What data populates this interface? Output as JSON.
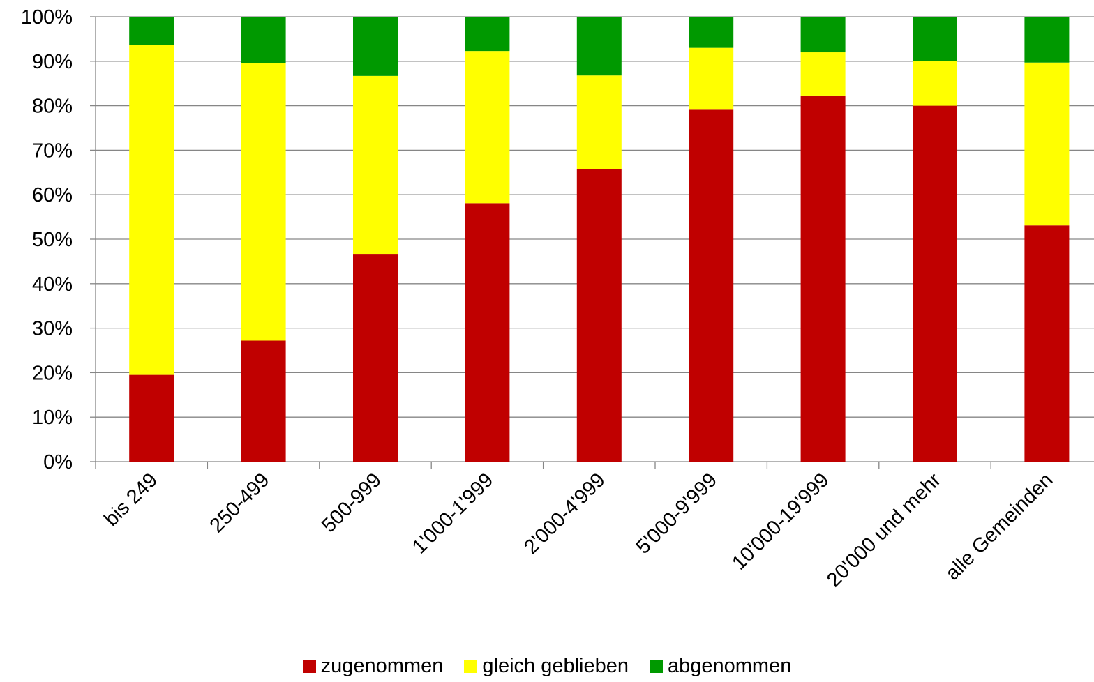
{
  "chart_data": {
    "type": "bar",
    "stacked": true,
    "percent": true,
    "title": "",
    "xlabel": "",
    "ylabel": "",
    "ylim": [
      0,
      100
    ],
    "yticks": [
      "0%",
      "10%",
      "20%",
      "30%",
      "40%",
      "50%",
      "60%",
      "70%",
      "80%",
      "90%",
      "100%"
    ],
    "grid": true,
    "legend_position": "bottom",
    "categories": [
      "bis 249",
      "250-499",
      "500-999",
      "1'000-1'999",
      "2'000-4'999",
      "5'000-9'999",
      "10'000-19'999",
      "20'000 und mehr",
      "alle Gemeinden"
    ],
    "series": [
      {
        "name": "zugenommen",
        "color": "#c00000",
        "values": [
          19.5,
          27.2,
          46.7,
          58.1,
          65.8,
          79.1,
          82.3,
          80.0,
          53.1
        ]
      },
      {
        "name": "gleich geblieben",
        "color": "#ffff00",
        "values": [
          74.1,
          62.4,
          40.0,
          34.2,
          21.0,
          13.9,
          9.7,
          10.1,
          36.6
        ]
      },
      {
        "name": "abgenommen",
        "color": "#009900",
        "values": [
          6.4,
          10.4,
          13.3,
          7.7,
          13.2,
          7.0,
          8.0,
          9.9,
          10.3
        ]
      }
    ]
  }
}
